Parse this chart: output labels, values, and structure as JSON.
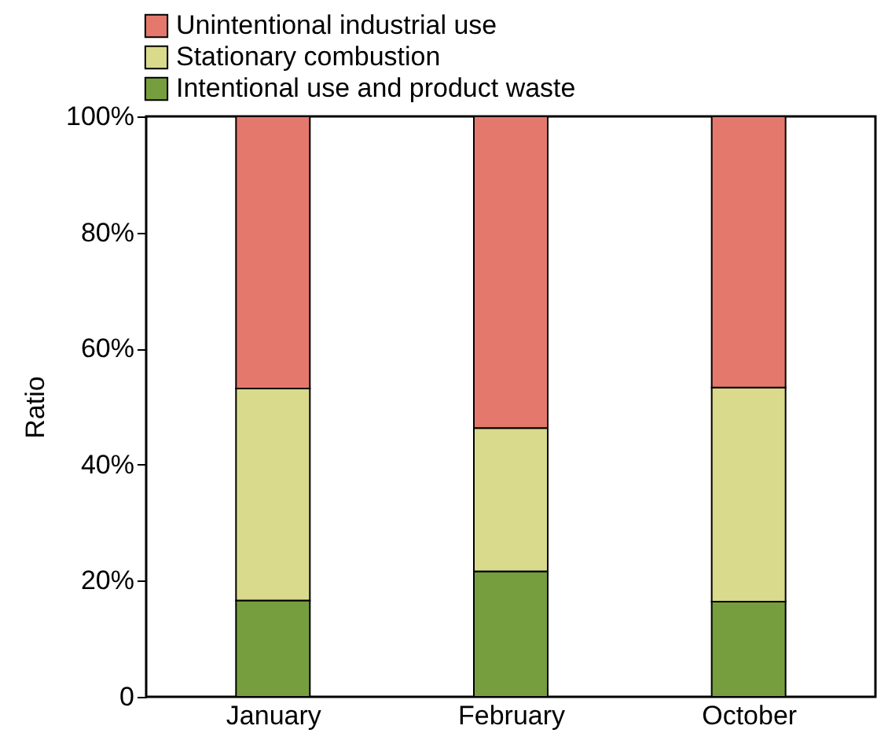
{
  "chart_data": {
    "type": "bar",
    "stacked": true,
    "ylabel": "Ratio",
    "categories": [
      "January",
      "February",
      "October"
    ],
    "series": [
      {
        "name": "Intentional use and product waste",
        "color": "#779e3e",
        "values": [
          16.6,
          21.6,
          16.4
        ]
      },
      {
        "name": "Stationary combustion",
        "color": "#d9da8b",
        "values": [
          36.5,
          24.7,
          36.9
        ]
      },
      {
        "name": "Unintentional industrial use",
        "color": "#e5786d",
        "values": [
          46.9,
          53.7,
          46.7
        ]
      }
    ],
    "ylim": [
      0,
      100
    ],
    "yticks": [
      0,
      {
        "value": 20,
        "label": "20%"
      },
      {
        "value": 40,
        "label": "40%"
      },
      {
        "value": 60,
        "label": "60%"
      },
      {
        "value": 80,
        "label": "80%"
      },
      {
        "value": 100,
        "label": "100%"
      }
    ],
    "grid": false,
    "legend": "top left"
  }
}
